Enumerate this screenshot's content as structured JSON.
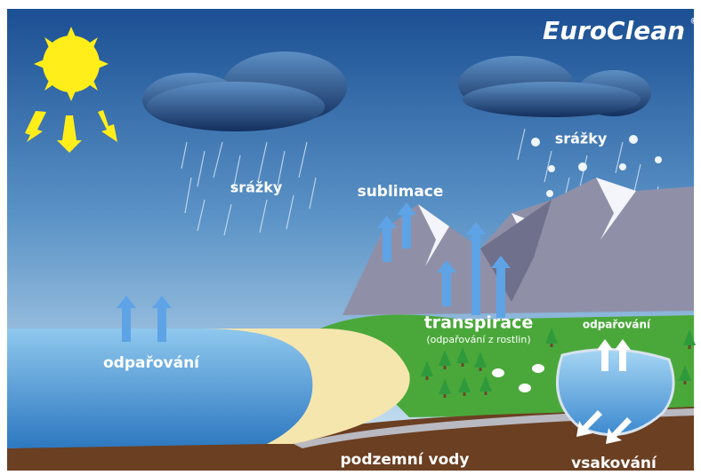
{
  "brand": {
    "name": "EuroClean",
    "mark": "®"
  },
  "labels": {
    "precipitation_left": "srážky",
    "sublimation": "sublimace",
    "precipitation_right": "srážky",
    "transpiration": "transpirace",
    "transpiration_note": "(odpařování z rostlin)",
    "evaporation_lake": "odpařování",
    "evaporation_sea": "odpařování",
    "groundwater": "podzemní vody",
    "infiltration": "vsakování"
  }
}
